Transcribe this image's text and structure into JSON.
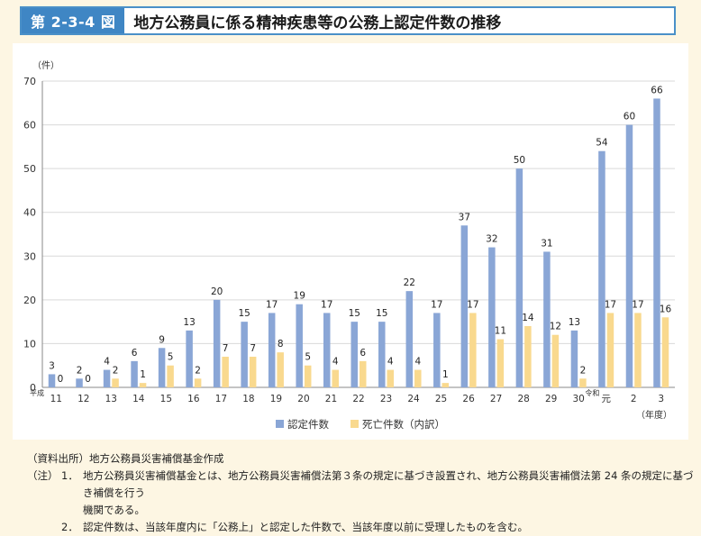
{
  "header": {
    "figure_label": "第 2-3-4 図",
    "title": "地方公務員に係る精神疾患等の公務上認定件数の推移"
  },
  "chart_data": {
    "type": "bar",
    "y_unit": "（件）",
    "x_unit": "（年度）",
    "era_labels": {
      "heisei": "平成",
      "reiwa": "令和"
    },
    "categories": [
      "11",
      "12",
      "13",
      "14",
      "15",
      "16",
      "17",
      "18",
      "19",
      "20",
      "21",
      "22",
      "23",
      "24",
      "25",
      "26",
      "27",
      "28",
      "29",
      "30",
      "元",
      "2",
      "3"
    ],
    "series": [
      {
        "name": "認定件数",
        "color": "#8aa6d6",
        "values": [
          3,
          2,
          4,
          6,
          9,
          13,
          20,
          15,
          17,
          19,
          17,
          15,
          15,
          22,
          17,
          37,
          32,
          50,
          31,
          13,
          54,
          60,
          66
        ]
      },
      {
        "name": "死亡件数（内訳）",
        "color": "#f9d98e",
        "values": [
          0,
          0,
          2,
          1,
          5,
          2,
          7,
          7,
          8,
          5,
          4,
          6,
          4,
          4,
          1,
          17,
          11,
          14,
          12,
          2,
          17,
          17,
          16
        ]
      }
    ],
    "ylim": [
      0,
      70
    ],
    "yticks": [
      0,
      10,
      20,
      30,
      40,
      50,
      60,
      70
    ],
    "grid": true,
    "legend": "bottom-center"
  },
  "notes": {
    "source": "（資料出所）地方公務員災害補償基金作成",
    "prefix": "（注）",
    "items": [
      {
        "num": "1．",
        "text": "地方公務員災害補償基金とは、地方公務員災害補償法第３条の規定に基づき設置され、地方公務員災害補償法第 24 条の規定に基づき補償を行う",
        "cont": "機関である。"
      },
      {
        "num": "2．",
        "text": "認定件数は、当該年度内に「公務上」と認定した件数で、当該年度以前に受理したものを含む。"
      }
    ]
  }
}
